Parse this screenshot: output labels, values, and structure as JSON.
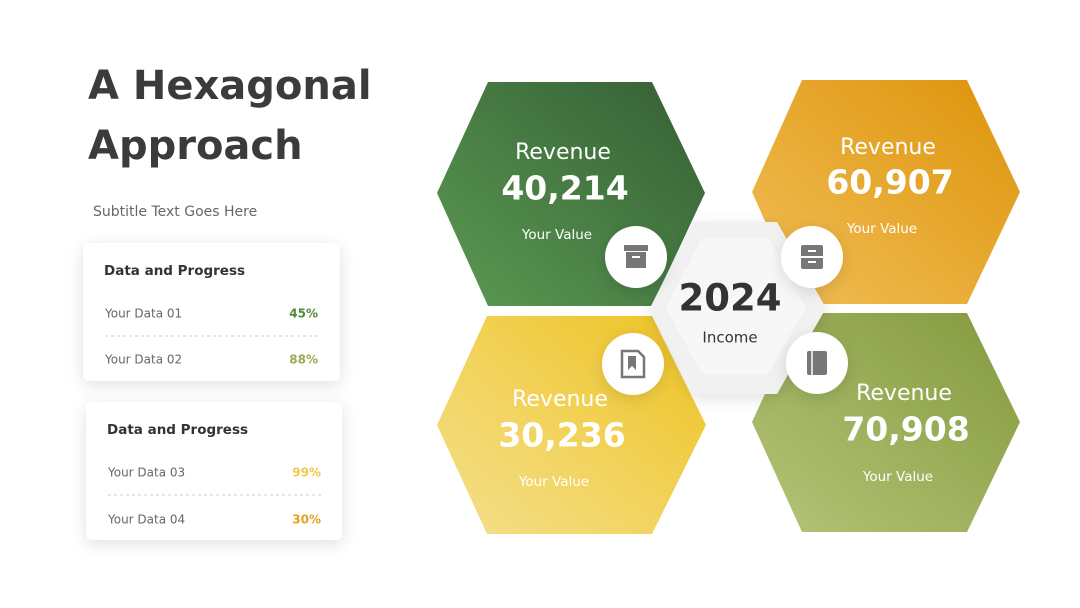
{
  "title": {
    "line1": "A Hexagonal",
    "line2": "Approach"
  },
  "subtitle": "Subtitle Text Goes Here",
  "cards": [
    {
      "heading": "Data and Progress",
      "rows": [
        {
          "label": "Your Data 01",
          "value": "45%"
        },
        {
          "label": "Your Data 02",
          "value": "88%"
        }
      ]
    },
    {
      "heading": "Data and Progress",
      "rows": [
        {
          "label": "Your Data 03",
          "value": "99%"
        },
        {
          "label": "Your Data 04",
          "value": "30%"
        }
      ]
    }
  ],
  "hexagons": [
    {
      "label": "Revenue",
      "value": "40,214",
      "caption": "Your Value"
    },
    {
      "label": "Revenue",
      "value": "60,907",
      "caption": "Your Value"
    },
    {
      "label": "Revenue",
      "value": "30,236",
      "caption": "Your Value"
    },
    {
      "label": "Revenue",
      "value": "70,908",
      "caption": "Your Value"
    }
  ],
  "center": {
    "year": "2024",
    "label": "Income"
  }
}
